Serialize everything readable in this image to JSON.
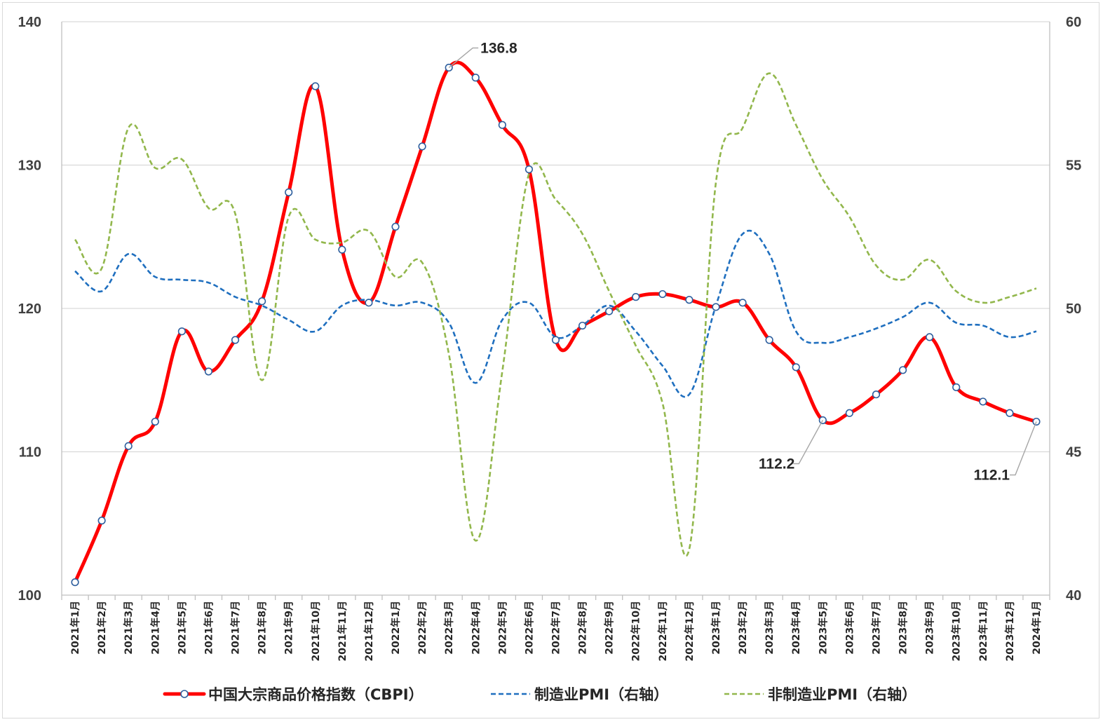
{
  "chart_data": {
    "type": "line",
    "categories": [
      "2021年1月",
      "2021年2月",
      "2021年3月",
      "2021年4月",
      "2021年5月",
      "2021年6月",
      "2021年7月",
      "2021年8月",
      "2021年9月",
      "2021年10月",
      "2021年11月",
      "2021年12月",
      "2022年1月",
      "2022年2月",
      "2022年3月",
      "2022年4月",
      "2022年5月",
      "2022年6月",
      "2022年7月",
      "2022年8月",
      "2022年9月",
      "2022年10月",
      "2022年11月",
      "2022年12月",
      "2023年1月",
      "2023年2月",
      "2023年3月",
      "2023年4月",
      "2023年5月",
      "2023年6月",
      "2023年7月",
      "2023年8月",
      "2023年9月",
      "2023年10月",
      "2023年11月",
      "2023年12月",
      "2024年1月"
    ],
    "series": [
      {
        "name": "中国大宗商品价格指数（CBPI）",
        "axis": "left",
        "color": "#ff0000",
        "style": "solid-markers",
        "values": [
          100.9,
          105.2,
          110.4,
          112.1,
          118.4,
          115.6,
          117.8,
          120.5,
          128.1,
          135.5,
          124.1,
          120.4,
          125.7,
          131.3,
          136.8,
          136.1,
          132.8,
          129.7,
          117.8,
          118.8,
          119.8,
          120.8,
          121.0,
          120.6,
          120.1,
          120.4,
          117.8,
          115.9,
          112.2,
          112.7,
          114.0,
          115.7,
          118.0,
          114.5,
          113.5,
          112.7,
          112.1
        ]
      },
      {
        "name": "制造业PMI（右轴）",
        "axis": "right",
        "color": "#1f6fbf",
        "style": "dashed",
        "values": [
          51.3,
          50.6,
          51.9,
          51.1,
          51.0,
          50.9,
          50.4,
          50.1,
          49.6,
          49.2,
          50.1,
          50.3,
          50.1,
          50.2,
          49.5,
          47.4,
          49.6,
          50.2,
          49.0,
          49.4,
          50.1,
          49.2,
          48.0,
          47.0,
          50.1,
          52.6,
          51.9,
          49.2,
          48.8,
          49.0,
          49.3,
          49.7,
          50.2,
          49.5,
          49.4,
          49.0,
          49.2
        ]
      },
      {
        "name": "非制造业PMI（右轴）",
        "axis": "right",
        "color": "#92b74c",
        "style": "dashed",
        "values": [
          52.4,
          51.4,
          56.3,
          54.9,
          55.2,
          53.5,
          53.3,
          47.5,
          53.2,
          52.4,
          52.3,
          52.7,
          51.1,
          51.6,
          48.4,
          41.9,
          47.8,
          54.7,
          53.8,
          52.6,
          50.6,
          48.7,
          46.7,
          41.6,
          54.4,
          56.3,
          58.2,
          56.4,
          54.5,
          53.2,
          51.5,
          51.0,
          51.7,
          50.6,
          50.2,
          50.4,
          50.7
        ]
      }
    ],
    "ylim_left": [
      100,
      140
    ],
    "yticks_left": [
      "100",
      "110",
      "120",
      "130",
      "140"
    ],
    "ylim_right": [
      40,
      60
    ],
    "yticks_right": [
      "40",
      "45",
      "50",
      "55",
      "60"
    ],
    "annotations": [
      {
        "index": 14,
        "label": "136.8"
      },
      {
        "index": 28,
        "label": "112.2"
      },
      {
        "index": 36,
        "label": "112.1"
      }
    ],
    "grid": "horizontal",
    "legend_position": "bottom"
  }
}
